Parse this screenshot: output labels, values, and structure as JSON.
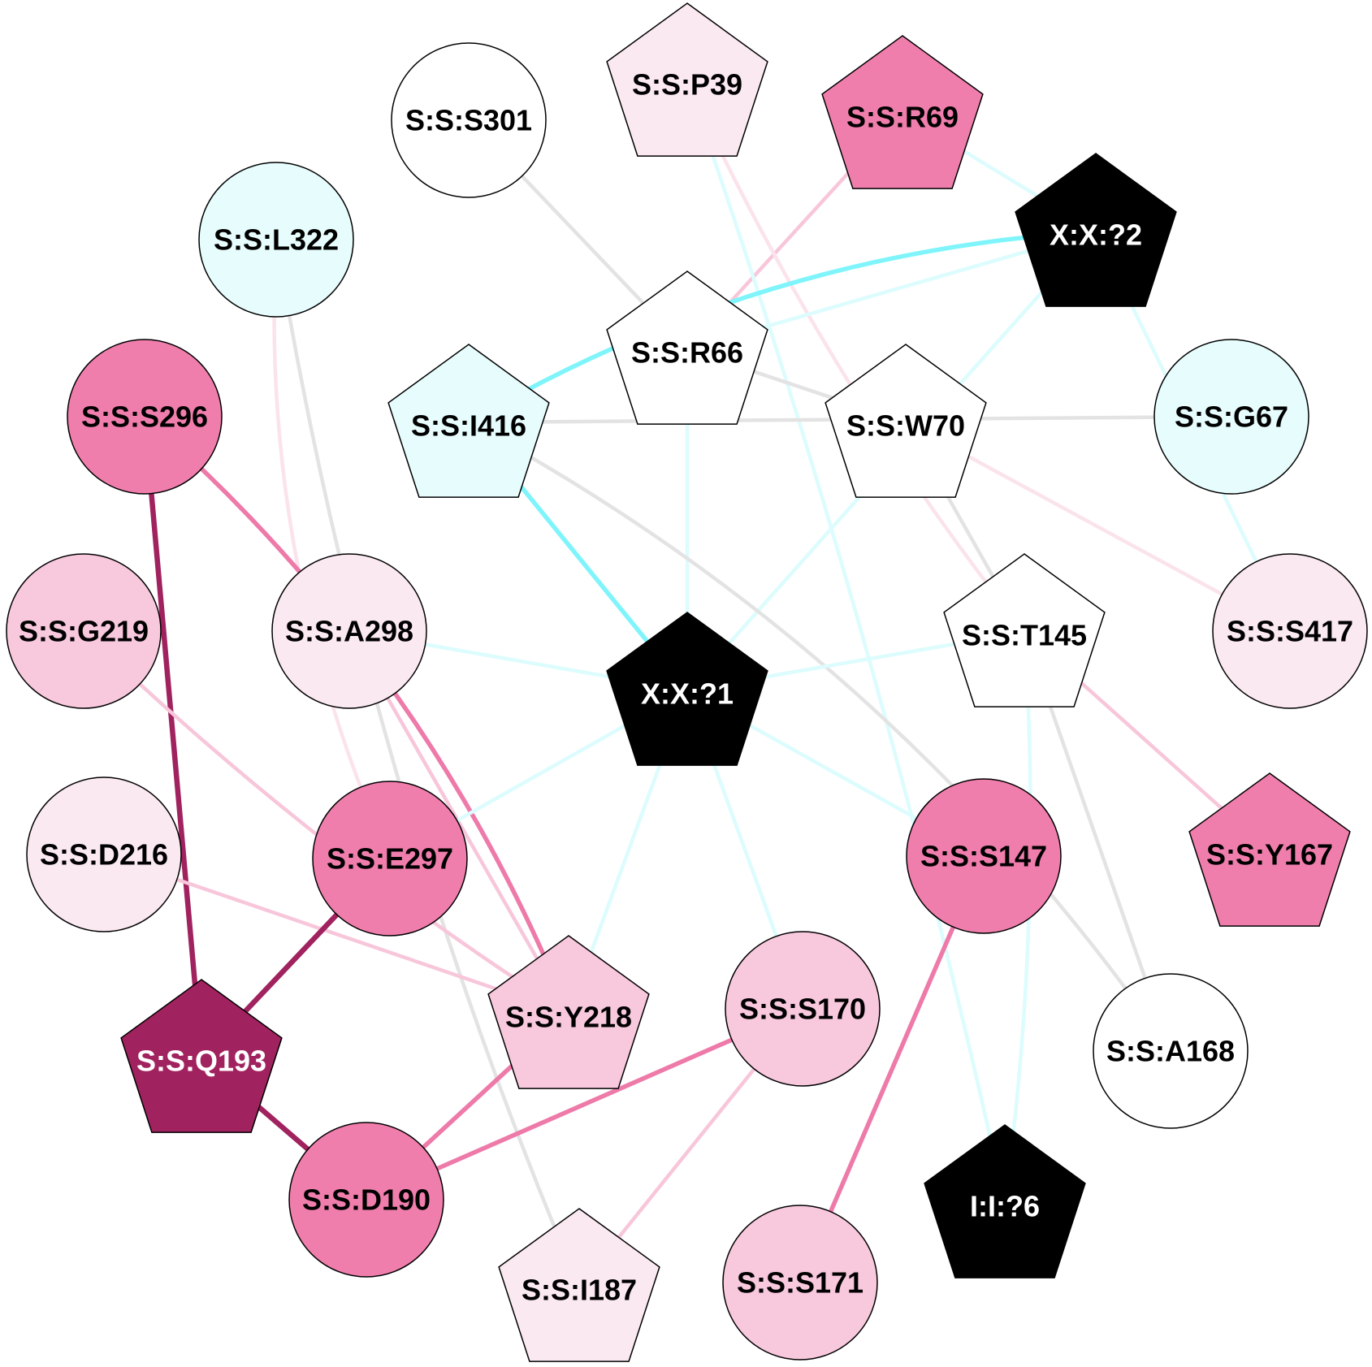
{
  "colors": {
    "white": "#ffffff",
    "cyan_light": "#e6fcfd",
    "pink_faint": "#fbe9f1",
    "pink_light": "#f8c8dd",
    "pink_mid": "#f07ead",
    "magenta_dark": "#a0225e",
    "black": "#000000",
    "edge_gray": "#e3e3e3",
    "edge_cyan_faint": "#dcfcfd",
    "edge_cyan": "#7ff5fb",
    "edge_pink_faint": "#fbe3ec",
    "edge_pink_light": "#f8c6da",
    "edge_pink_mid": "#ee7aa9",
    "edge_magenta": "#a0225e"
  },
  "nodes": [
    {
      "id": "S301",
      "label": "S:S:S301",
      "shape": "circle",
      "fill": "white",
      "text": "black"
    },
    {
      "id": "P39",
      "label": "S:S:P39",
      "shape": "pentagon",
      "fill": "pink_faint",
      "text": "black"
    },
    {
      "id": "R69",
      "label": "S:S:R69",
      "shape": "pentagon",
      "fill": "pink_mid",
      "text": "black"
    },
    {
      "id": "X2",
      "label": "X:X:?2",
      "shape": "pentagon",
      "fill": "black",
      "text": "white"
    },
    {
      "id": "L322",
      "label": "S:S:L322",
      "shape": "circle",
      "fill": "cyan_light",
      "text": "black"
    },
    {
      "id": "R66",
      "label": "S:S:R66",
      "shape": "pentagon",
      "fill": "white",
      "text": "black"
    },
    {
      "id": "S296",
      "label": "S:S:S296",
      "shape": "circle",
      "fill": "pink_mid",
      "text": "black"
    },
    {
      "id": "I416",
      "label": "S:S:I416",
      "shape": "pentagon",
      "fill": "cyan_light",
      "text": "black"
    },
    {
      "id": "W70",
      "label": "S:S:W70",
      "shape": "pentagon",
      "fill": "white",
      "text": "black"
    },
    {
      "id": "G67",
      "label": "S:S:G67",
      "shape": "circle",
      "fill": "cyan_light",
      "text": "black"
    },
    {
      "id": "G219",
      "label": "S:S:G219",
      "shape": "circle",
      "fill": "pink_light",
      "text": "black"
    },
    {
      "id": "A298",
      "label": "S:S:A298",
      "shape": "circle",
      "fill": "pink_faint",
      "text": "black"
    },
    {
      "id": "X1",
      "label": "X:X:?1",
      "shape": "pentagon",
      "fill": "black",
      "text": "white"
    },
    {
      "id": "T145",
      "label": "S:S:T145",
      "shape": "pentagon",
      "fill": "white",
      "text": "black"
    },
    {
      "id": "S417",
      "label": "S:S:S417",
      "shape": "circle",
      "fill": "pink_faint",
      "text": "black"
    },
    {
      "id": "D216",
      "label": "S:S:D216",
      "shape": "circle",
      "fill": "pink_faint",
      "text": "black"
    },
    {
      "id": "E297",
      "label": "S:S:E297",
      "shape": "circle",
      "fill": "pink_mid",
      "text": "black"
    },
    {
      "id": "S147",
      "label": "S:S:S147",
      "shape": "circle",
      "fill": "pink_mid",
      "text": "black"
    },
    {
      "id": "Y167",
      "label": "S:S:Y167",
      "shape": "pentagon",
      "fill": "pink_mid",
      "text": "black"
    },
    {
      "id": "Q193",
      "label": "S:S:Q193",
      "shape": "pentagon",
      "fill": "magenta_dark",
      "text": "white"
    },
    {
      "id": "Y218",
      "label": "S:S:Y218",
      "shape": "pentagon",
      "fill": "pink_light",
      "text": "black"
    },
    {
      "id": "S170",
      "label": "S:S:S170",
      "shape": "circle",
      "fill": "pink_light",
      "text": "black"
    },
    {
      "id": "A168",
      "label": "S:S:A168",
      "shape": "circle",
      "fill": "white",
      "text": "black"
    },
    {
      "id": "D190",
      "label": "S:S:D190",
      "shape": "circle",
      "fill": "pink_mid",
      "text": "black"
    },
    {
      "id": "I187",
      "label": "S:S:I187",
      "shape": "pentagon",
      "fill": "pink_faint",
      "text": "black"
    },
    {
      "id": "S171",
      "label": "S:S:S171",
      "shape": "circle",
      "fill": "pink_light",
      "text": "black"
    },
    {
      "id": "I6",
      "label": "I:I:?6",
      "shape": "pentagon",
      "fill": "black",
      "text": "white"
    }
  ],
  "edges": [
    {
      "from": "S301",
      "to": "R66",
      "color": "edge_gray",
      "weight": 1
    },
    {
      "from": "R69",
      "to": "R66",
      "color": "edge_pink_light",
      "weight": 1
    },
    {
      "from": "R69",
      "to": "X2",
      "color": "edge_cyan_faint",
      "weight": 1
    },
    {
      "from": "P39",
      "to": "I6",
      "color": "edge_cyan_faint",
      "weight": 1
    },
    {
      "from": "P39",
      "to": "T145",
      "color": "edge_pink_faint",
      "weight": 1
    },
    {
      "from": "X2",
      "to": "R66",
      "color": "edge_cyan_faint",
      "weight": 1
    },
    {
      "from": "X2",
      "to": "I416",
      "color": "edge_cyan",
      "weight": 2
    },
    {
      "from": "X2",
      "to": "X1",
      "color": "edge_cyan_faint",
      "weight": 1
    },
    {
      "from": "X2",
      "to": "S417",
      "color": "edge_cyan_faint",
      "weight": 1
    },
    {
      "from": "L322",
      "to": "E297",
      "color": "edge_pink_faint",
      "weight": 1
    },
    {
      "from": "L322",
      "to": "I187",
      "color": "edge_gray",
      "weight": 1
    },
    {
      "from": "R66",
      "to": "X1",
      "color": "edge_cyan_faint",
      "weight": 1
    },
    {
      "from": "R66",
      "to": "W70",
      "color": "edge_gray",
      "weight": 1
    },
    {
      "from": "I416",
      "to": "G67",
      "color": "edge_gray",
      "weight": 1
    },
    {
      "from": "I416",
      "to": "X1",
      "color": "edge_cyan",
      "weight": 2
    },
    {
      "from": "I416",
      "to": "A168",
      "color": "edge_gray",
      "weight": 1
    },
    {
      "from": "W70",
      "to": "T145",
      "color": "edge_gray",
      "weight": 1
    },
    {
      "from": "W70",
      "to": "S417",
      "color": "edge_pink_faint",
      "weight": 1
    },
    {
      "from": "S296",
      "to": "Q193",
      "color": "edge_magenta",
      "weight": 3
    },
    {
      "from": "S296",
      "to": "Y218",
      "color": "edge_pink_mid",
      "weight": 2
    },
    {
      "from": "G219",
      "to": "Y218",
      "color": "edge_pink_light",
      "weight": 1
    },
    {
      "from": "A298",
      "to": "X1",
      "color": "edge_cyan_faint",
      "weight": 1
    },
    {
      "from": "A298",
      "to": "Y218",
      "color": "edge_pink_light",
      "weight": 1
    },
    {
      "from": "X1",
      "to": "T145",
      "color": "edge_cyan_faint",
      "weight": 1
    },
    {
      "from": "X1",
      "to": "E297",
      "color": "edge_cyan_faint",
      "weight": 1
    },
    {
      "from": "X1",
      "to": "Y218",
      "color": "edge_cyan_faint",
      "weight": 1
    },
    {
      "from": "X1",
      "to": "S170",
      "color": "edge_cyan_faint",
      "weight": 1
    },
    {
      "from": "X1",
      "to": "S147",
      "color": "edge_cyan_faint",
      "weight": 1
    },
    {
      "from": "T145",
      "to": "Y167",
      "color": "edge_pink_light",
      "weight": 1
    },
    {
      "from": "T145",
      "to": "A168",
      "color": "edge_gray",
      "weight": 1
    },
    {
      "from": "T145",
      "to": "I6",
      "color": "edge_cyan_faint",
      "weight": 1
    },
    {
      "from": "D216",
      "to": "Y218",
      "color": "edge_pink_light",
      "weight": 1
    },
    {
      "from": "E297",
      "to": "Q193",
      "color": "edge_magenta",
      "weight": 3
    },
    {
      "from": "Q193",
      "to": "D190",
      "color": "edge_magenta",
      "weight": 3
    },
    {
      "from": "Y218",
      "to": "D190",
      "color": "edge_pink_mid",
      "weight": 2
    },
    {
      "from": "S170",
      "to": "D190",
      "color": "edge_pink_mid",
      "weight": 2
    },
    {
      "from": "S170",
      "to": "I187",
      "color": "edge_pink_light",
      "weight": 1
    },
    {
      "from": "S147",
      "to": "S171",
      "color": "edge_pink_mid",
      "weight": 2
    }
  ]
}
